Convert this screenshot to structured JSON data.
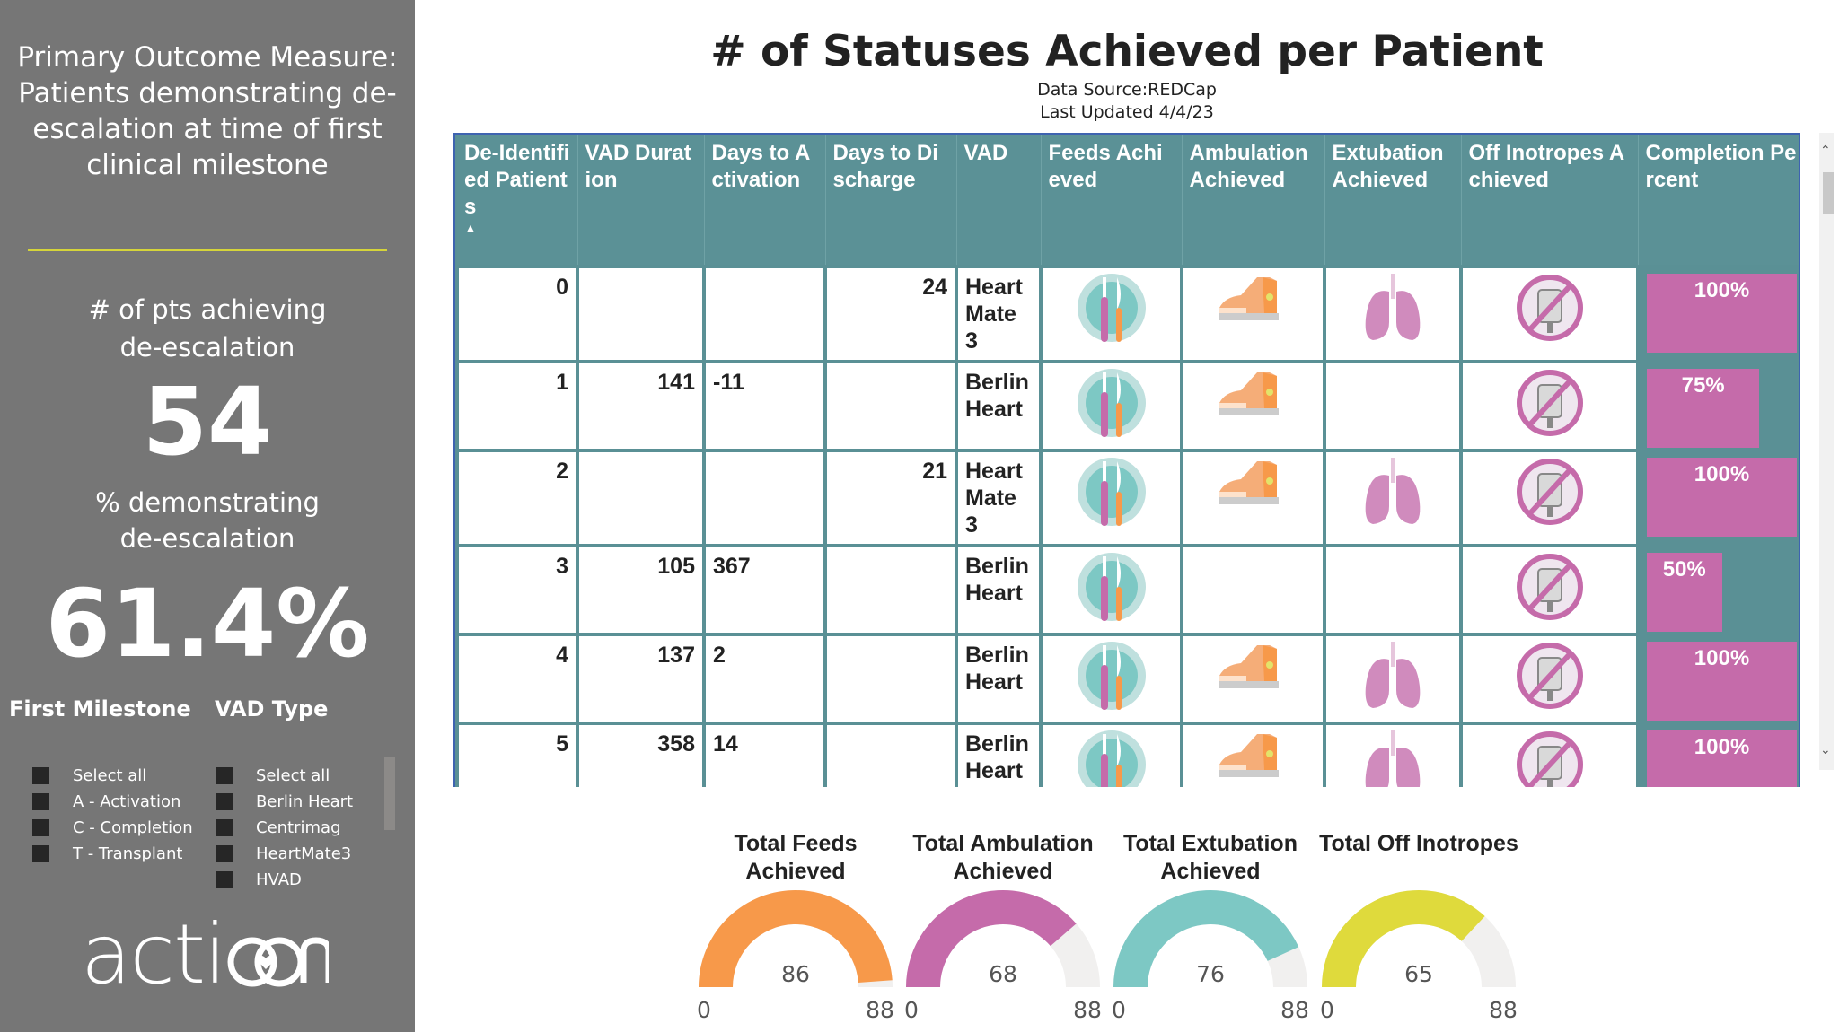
{
  "sidebar": {
    "title": "Primary Outcome Measure: Patients demonstrating de-escalation at time of first clinical milestone",
    "kpi1_label": "# of pts achieving de-escalation",
    "kpi1_value": "54",
    "kpi2_label": "% demonstrating de-escalation",
    "kpi2_value": "61.4%",
    "filter1": {
      "title": "First Milestone",
      "items": [
        "Select all",
        "A - Activation",
        "C - Completion",
        "T - Transplant"
      ]
    },
    "filter2": {
      "title": "VAD Type",
      "items": [
        "Select all",
        "Berlin Heart",
        "Centrimag",
        "HeartMate3",
        "HVAD"
      ]
    },
    "logo": "action"
  },
  "header": {
    "title": "# of Statuses Achieved per Patient",
    "source": "Data Source:REDCap",
    "updated": "Last Updated 4/4/23"
  },
  "table": {
    "columns": [
      "De-Identified Patients",
      "VAD Duration",
      "Days to Activation",
      "Days to Discharge",
      "VAD",
      "Feeds Achieved",
      "Ambulation Achieved",
      "Extubation Achieved",
      "Off Inotropes Achieved",
      "Completion Percent"
    ],
    "sort_indicator": "▲",
    "rows": [
      {
        "id": "0",
        "vad_duration": "",
        "days_activation": "",
        "days_discharge": "24",
        "vad": "Heart Mate 3",
        "feeds": true,
        "ambulation": true,
        "extubation": true,
        "off_inotropes": true,
        "completion": "100%",
        "completion_value": 100
      },
      {
        "id": "1",
        "vad_duration": "141",
        "days_activation": "-11",
        "days_discharge": "",
        "vad": "Berlin Heart",
        "feeds": true,
        "ambulation": true,
        "extubation": false,
        "off_inotropes": true,
        "completion": "75%",
        "completion_value": 75
      },
      {
        "id": "2",
        "vad_duration": "",
        "days_activation": "",
        "days_discharge": "21",
        "vad": "Heart Mate 3",
        "feeds": true,
        "ambulation": true,
        "extubation": true,
        "off_inotropes": true,
        "completion": "100%",
        "completion_value": 100
      },
      {
        "id": "3",
        "vad_duration": "105",
        "days_activation": "367",
        "days_discharge": "",
        "vad": "Berlin Heart",
        "feeds": true,
        "ambulation": false,
        "extubation": false,
        "off_inotropes": true,
        "completion": "50%",
        "completion_value": 50
      },
      {
        "id": "4",
        "vad_duration": "137",
        "days_activation": "2",
        "days_discharge": "",
        "vad": "Berlin Heart",
        "feeds": true,
        "ambulation": true,
        "extubation": true,
        "off_inotropes": true,
        "completion": "100%",
        "completion_value": 100
      },
      {
        "id": "5",
        "vad_duration": "358",
        "days_activation": "14",
        "days_discharge": "",
        "vad": "Berlin Heart",
        "feeds": true,
        "ambulation": true,
        "extubation": true,
        "off_inotropes": true,
        "completion": "100%",
        "completion_value": 100
      }
    ]
  },
  "gauges": [
    {
      "title": "Total Feeds Achieved",
      "value": 86,
      "min": 0,
      "max": 88,
      "color": "#f7994a"
    },
    {
      "title": "Total Ambulation Achieved",
      "value": 68,
      "min": 0,
      "max": 88,
      "color": "#c56baa"
    },
    {
      "title": "Total Extubation Achieved",
      "value": 76,
      "min": 0,
      "max": 88,
      "color": "#7dc8c4"
    },
    {
      "title": "Total Off Inotropes",
      "value": 65,
      "min": 0,
      "max": 88,
      "color": "#dfda3c"
    }
  ],
  "colors": {
    "sidebar_bg": "#767676",
    "header_teal": "#5b9196",
    "bar_pink": "#c56baa",
    "rule_yellow": "#d5d43a",
    "gauge_track": "#f1f0ef"
  }
}
